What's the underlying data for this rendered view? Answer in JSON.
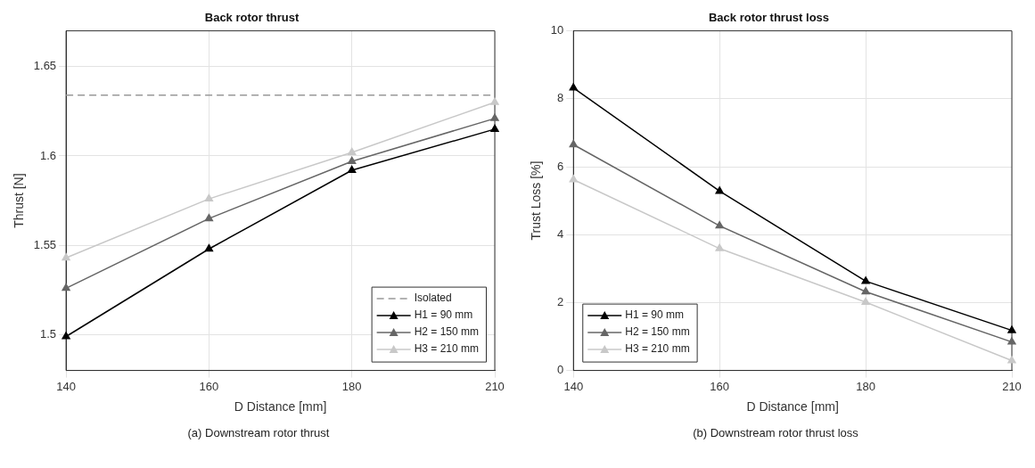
{
  "chart_data": [
    {
      "type": "line",
      "title": "Back rotor thrust",
      "xlabel": "D Distance [mm]",
      "ylabel": "Thrust [N]",
      "categories": [
        "140",
        "160",
        "180",
        "210"
      ],
      "series": [
        {
          "name": "H1 = 90 mm",
          "color": "#000000",
          "values": [
            1.499,
            1.548,
            1.592,
            1.615
          ]
        },
        {
          "name": "H2 = 150 mm",
          "color": "#666666",
          "values": [
            1.526,
            1.565,
            1.597,
            1.621
          ]
        },
        {
          "name": "H3 = 210 mm",
          "color": "#c8c8c8",
          "values": [
            1.543,
            1.576,
            1.602,
            1.63
          ]
        }
      ],
      "ref_lines": [
        {
          "axis": "y",
          "value": 1.634,
          "label": "Isolated",
          "color": "#999999",
          "line_style": "dashed"
        }
      ],
      "ylim": [
        1.48,
        1.67
      ],
      "yticks": [
        1.5,
        1.55,
        1.6,
        1.65
      ],
      "grid": true,
      "legend": "bottom right",
      "marker": "triangle",
      "line_style": "solid",
      "annotations": [
        "(a)  Downstream rotor thrust"
      ]
    },
    {
      "type": "line",
      "title": "Back rotor thrust loss",
      "xlabel": "D Distance [mm]",
      "ylabel": "Trust Loss [%]",
      "categories": [
        "140",
        "160",
        "180",
        "210"
      ],
      "series": [
        {
          "name": "H1 = 90 mm",
          "color": "#000000",
          "values": [
            8.32,
            5.28,
            2.63,
            1.18
          ]
        },
        {
          "name": "H2 = 150 mm",
          "color": "#666666",
          "values": [
            6.65,
            4.26,
            2.32,
            0.84
          ]
        },
        {
          "name": "H3 = 210 mm",
          "color": "#c8c8c8",
          "values": [
            5.62,
            3.59,
            2.01,
            0.29
          ]
        }
      ],
      "ylim": [
        0,
        10
      ],
      "yticks": [
        0,
        2,
        4,
        6,
        8,
        10
      ],
      "grid": true,
      "legend": "bottom left",
      "marker": "triangle",
      "line_style": "solid",
      "annotations": [
        "(b)  Downstream rotor thrust loss"
      ]
    }
  ]
}
